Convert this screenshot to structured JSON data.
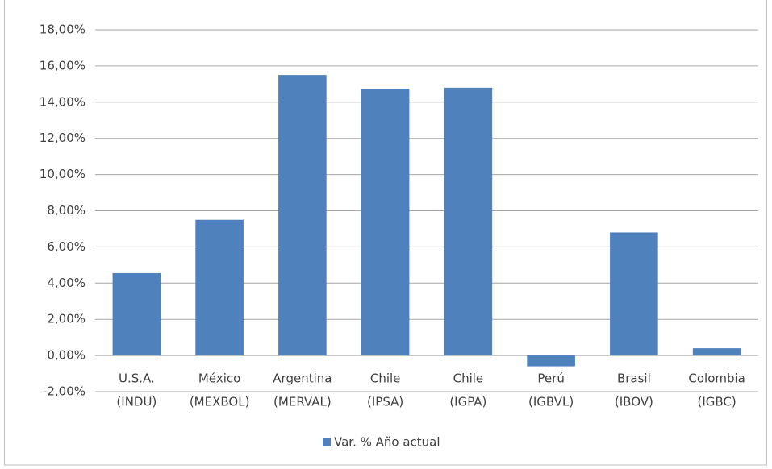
{
  "chart_data": {
    "type": "bar",
    "categories": [
      [
        "U.S.A.",
        "(INDU)"
      ],
      [
        "México",
        "(MEXBOL)"
      ],
      [
        "Argentina",
        "(MERVAL)"
      ],
      [
        "Chile",
        "(IPSA)"
      ],
      [
        "Chile",
        "(IGPA)"
      ],
      [
        "Perú",
        "(IGBVL)"
      ],
      [
        "Brasil",
        "(IBOV)"
      ],
      [
        "Colombia",
        "(IGBC)"
      ]
    ],
    "series": [
      {
        "name": "Var. % Año actual",
        "color": "#4f81bd",
        "values": [
          4.55,
          7.5,
          15.5,
          14.75,
          14.8,
          -0.6,
          6.8,
          0.4
        ]
      }
    ],
    "ylim": [
      -2,
      18
    ],
    "yticks": [
      {
        "value": -2,
        "label": "-2,00%"
      },
      {
        "value": 0,
        "label": "0,00%"
      },
      {
        "value": 2,
        "label": "2,00%"
      },
      {
        "value": 4,
        "label": "4,00%"
      },
      {
        "value": 6,
        "label": "6,00%"
      },
      {
        "value": 8,
        "label": "8,00%"
      },
      {
        "value": 10,
        "label": "10,00%"
      },
      {
        "value": 12,
        "label": "12,00%"
      },
      {
        "value": 14,
        "label": "14,00%"
      },
      {
        "value": 16,
        "label": "16,00%"
      },
      {
        "value": 18,
        "label": "18,00%"
      }
    ],
    "grid": true,
    "legend": "bottom"
  }
}
